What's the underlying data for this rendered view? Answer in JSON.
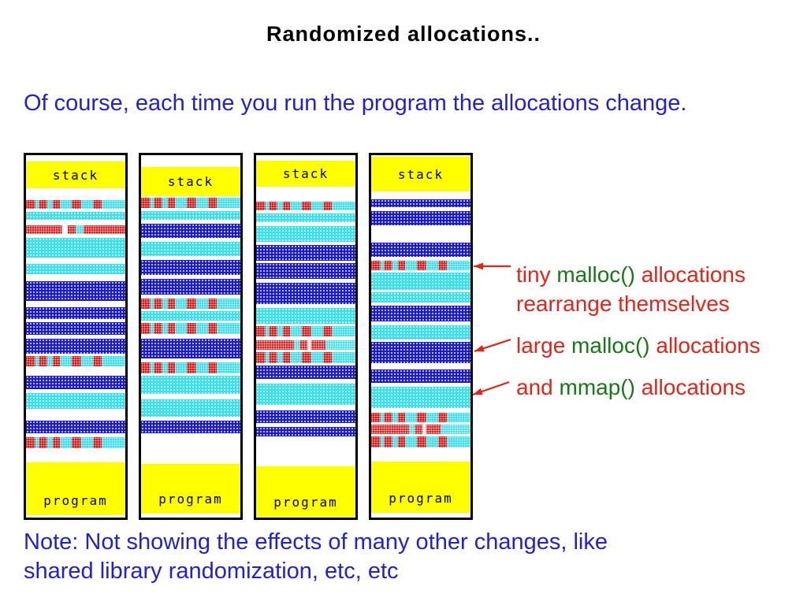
{
  "title": "Randomized allocations..",
  "intro": "Of course, each time you run the program the allocations change.",
  "note": {
    "line1": "Note: Not showing the effects of many other changes, like",
    "line2": "shared library randomization, etc, etc"
  },
  "labels": {
    "stack": "stack",
    "program": "program"
  },
  "annotations": [
    {
      "pre": "tiny ",
      "code": "malloc()",
      "post": " allocations",
      "line2": "rearrange themselves"
    },
    {
      "pre": "large ",
      "code": "malloc()",
      "post": " allocations",
      "line2": ""
    },
    {
      "pre": "and ",
      "code": "mmap()",
      "post": " allocations",
      "line2": ""
    }
  ],
  "colors": {
    "yellow": "#ffff00",
    "cyan": "#3ae0ec",
    "blue": "#1a1ad0",
    "red": "#e81414",
    "text_blue": "#2222cc",
    "text_red": "#e0251a",
    "text_green": "#177817"
  },
  "diagram": {
    "columns": [
      {
        "bands": [
          [
            "white",
            8
          ],
          [
            "stack",
            34
          ],
          [
            "white",
            15
          ],
          [
            "tiny",
            11
          ],
          [
            "white",
            4
          ],
          [
            "cyan",
            10
          ],
          [
            "white",
            7
          ],
          [
            "redhatch",
            11
          ],
          [
            "white",
            5
          ],
          [
            "cyan",
            25
          ],
          [
            "white",
            8
          ],
          [
            "cyan",
            13
          ],
          [
            "white",
            9
          ],
          [
            "blue",
            25
          ],
          [
            "white",
            8
          ],
          [
            "blue",
            15
          ],
          [
            "white",
            4
          ],
          [
            "blue",
            16
          ],
          [
            "white",
            5
          ],
          [
            "blue",
            19
          ],
          [
            "white",
            3
          ],
          [
            "tiny",
            13
          ],
          [
            "white",
            12
          ],
          [
            "blue",
            17
          ],
          [
            "white",
            5
          ],
          [
            "cyan",
            20
          ],
          [
            "white",
            15
          ],
          [
            "blue",
            16
          ],
          [
            "white",
            5
          ],
          [
            "tiny",
            14
          ],
          [
            "white",
            18
          ],
          [
            "program",
            67
          ],
          [
            "white",
            8
          ]
        ]
      },
      {
        "bands": [
          [
            "white",
            15
          ],
          [
            "stack",
            37
          ],
          [
            "white",
            2
          ],
          [
            "tiny",
            13
          ],
          [
            "white",
            4
          ],
          [
            "cyan",
            11
          ],
          [
            "white",
            5
          ],
          [
            "blue",
            18
          ],
          [
            "white",
            5
          ],
          [
            "cyan",
            18
          ],
          [
            "white",
            5
          ],
          [
            "blue",
            19
          ],
          [
            "white",
            5
          ],
          [
            "blue",
            20
          ],
          [
            "white",
            5
          ],
          [
            "tiny",
            13
          ],
          [
            "white",
            3
          ],
          [
            "cyan",
            12
          ],
          [
            "white",
            3
          ],
          [
            "tiny",
            14
          ],
          [
            "white",
            6
          ],
          [
            "blue",
            25
          ],
          [
            "white",
            5
          ],
          [
            "tiny",
            14
          ],
          [
            "white",
            3
          ],
          [
            "cyan",
            23
          ],
          [
            "white",
            7
          ],
          [
            "cyan",
            22
          ],
          [
            "white",
            5
          ],
          [
            "blue",
            16
          ],
          [
            "white",
            39
          ],
          [
            "program",
            63
          ],
          [
            "white",
            8
          ]
        ]
      },
      {
        "bands": [
          [
            "white",
            7
          ],
          [
            "stack",
            33
          ],
          [
            "white",
            19
          ],
          [
            "tiny",
            11
          ],
          [
            "white",
            4
          ],
          [
            "cyan",
            11
          ],
          [
            "white",
            5
          ],
          [
            "cyan",
            20
          ],
          [
            "white",
            4
          ],
          [
            "blue",
            20
          ],
          [
            "white",
            3
          ],
          [
            "blue",
            20
          ],
          [
            "white",
            5
          ],
          [
            "blue",
            27
          ],
          [
            "white",
            5
          ],
          [
            "cyan",
            20
          ],
          [
            "white",
            3
          ],
          [
            "tiny",
            13
          ],
          [
            "white",
            5
          ],
          [
            "redcheck",
            12
          ],
          [
            "white",
            3
          ],
          [
            "tiny",
            14
          ],
          [
            "white",
            3
          ],
          [
            "blue",
            17
          ],
          [
            "white",
            6
          ],
          [
            "cyan",
            27
          ],
          [
            "white",
            7
          ],
          [
            "blue",
            16
          ],
          [
            "white",
            5
          ],
          [
            "blue",
            12
          ],
          [
            "white",
            38
          ],
          [
            "program",
            64
          ],
          [
            "white",
            8
          ]
        ]
      },
      {
        "bands": [
          [
            "white",
            2
          ],
          [
            "stack",
            44
          ],
          [
            "white",
            10
          ],
          [
            "blue",
            10
          ],
          [
            "white",
            5
          ],
          [
            "blue",
            18
          ],
          [
            "white",
            22
          ],
          [
            "blue",
            18
          ],
          [
            "white",
            5
          ],
          [
            "tiny",
            12
          ],
          [
            "white",
            3
          ],
          [
            "cyan",
            22
          ],
          [
            "white",
            3
          ],
          [
            "cyan",
            13
          ],
          [
            "white",
            4
          ],
          [
            "blue",
            20
          ],
          [
            "white",
            5
          ],
          [
            "cyan",
            18
          ],
          [
            "white",
            3
          ],
          [
            "blue",
            27
          ],
          [
            "white",
            8
          ],
          [
            "blue",
            17
          ],
          [
            "white",
            5
          ],
          [
            "cyan",
            27
          ],
          [
            "white",
            6
          ],
          [
            "tiny",
            12
          ],
          [
            "white",
            3
          ],
          [
            "redcheck",
            12
          ],
          [
            "white",
            3
          ],
          [
            "tiny",
            14
          ],
          [
            "white",
            18
          ],
          [
            "program",
            65
          ],
          [
            "white",
            8
          ]
        ]
      }
    ]
  }
}
